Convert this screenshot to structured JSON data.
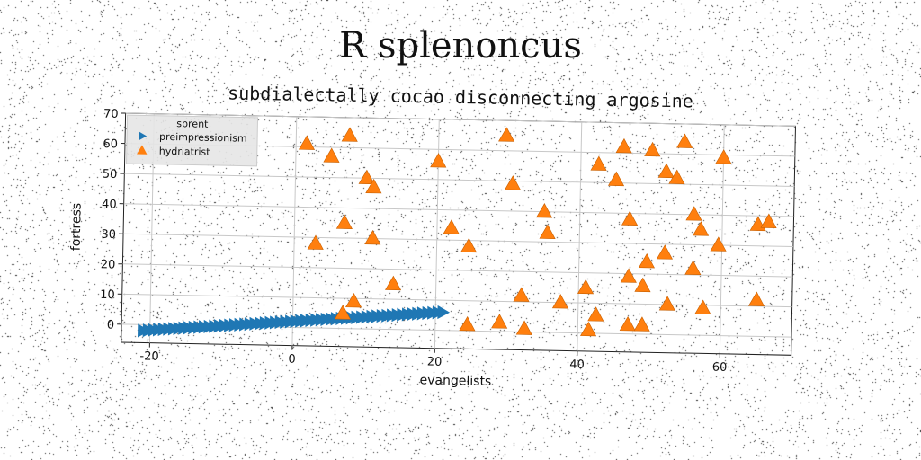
{
  "chart_data": {
    "type": "scatter",
    "title": "R splenoncus",
    "subtitle": "subdialectally cocao disconnecting argosine",
    "xlabel": "evangelists",
    "ylabel": "fortress",
    "xlim": [
      -24,
      70
    ],
    "ylim": [
      -6,
      70
    ],
    "x_ticks": [
      -20,
      0,
      20,
      40,
      60
    ],
    "y_ticks": [
      0,
      10,
      20,
      30,
      40,
      50,
      60,
      70
    ],
    "grid": true,
    "legend": {
      "title": "sprent",
      "placement": "top-left"
    },
    "series": [
      {
        "name": "preimpressionism",
        "marker": "triangle-right",
        "color": "#1f77b4",
        "x_start": -21,
        "x_end": 21,
        "y_start": -2,
        "y_end": 6,
        "count": 60
      },
      {
        "name": "hydriatrist",
        "marker": "triangle-up",
        "color": "#ff7f0e",
        "points": [
          [
            1.5,
            61
          ],
          [
            5,
            57
          ],
          [
            7.5,
            64
          ],
          [
            10,
            50
          ],
          [
            11,
            47
          ],
          [
            20,
            56
          ],
          [
            29.5,
            65
          ],
          [
            30.5,
            49
          ],
          [
            46,
            62
          ],
          [
            50,
            61
          ],
          [
            54.5,
            64
          ],
          [
            60,
            59
          ],
          [
            42.5,
            56
          ],
          [
            45,
            51
          ],
          [
            52,
            54
          ],
          [
            53.5,
            52
          ],
          [
            7,
            35
          ],
          [
            3,
            28
          ],
          [
            11,
            30
          ],
          [
            22,
            34
          ],
          [
            24.5,
            28
          ],
          [
            35,
            40
          ],
          [
            35.5,
            33
          ],
          [
            47,
            38
          ],
          [
            56,
            40
          ],
          [
            57,
            35
          ],
          [
            59.5,
            30
          ],
          [
            65,
            37
          ],
          [
            66.5,
            38
          ],
          [
            52,
            27
          ],
          [
            49.5,
            24
          ],
          [
            56,
            22
          ],
          [
            47,
            19
          ],
          [
            49,
            16
          ],
          [
            41,
            15
          ],
          [
            14,
            15
          ],
          [
            32,
            12
          ],
          [
            37.5,
            10
          ],
          [
            42.5,
            6
          ],
          [
            47,
            3
          ],
          [
            49,
            3
          ],
          [
            52.5,
            10
          ],
          [
            57.5,
            9
          ],
          [
            65,
            12
          ],
          [
            8.5,
            9
          ],
          [
            7,
            5
          ],
          [
            24.5,
            2
          ],
          [
            29,
            3
          ],
          [
            32.5,
            1
          ],
          [
            41.5,
            1
          ]
        ]
      }
    ]
  }
}
